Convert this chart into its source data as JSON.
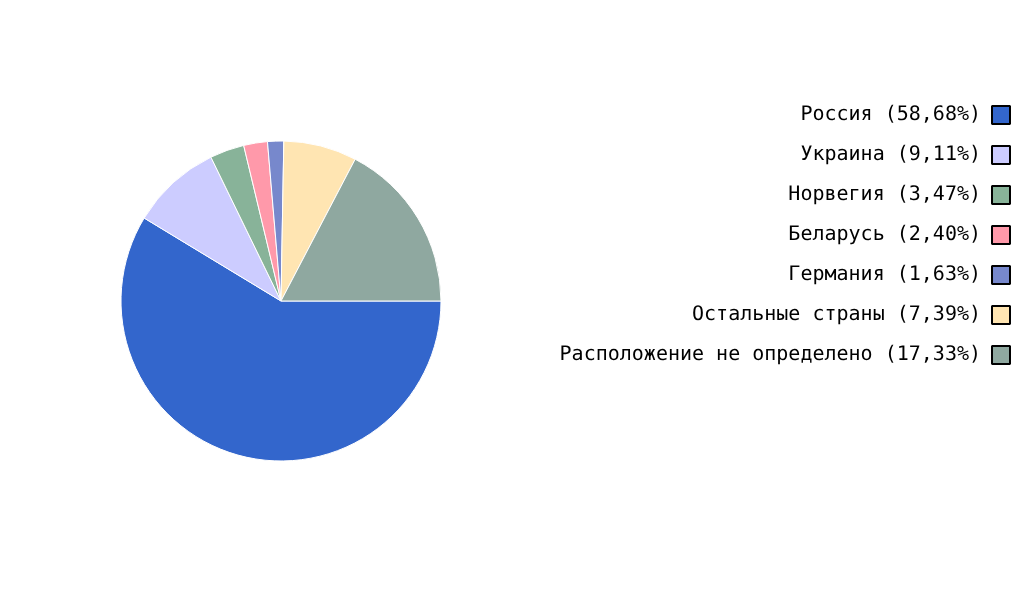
{
  "chart_data": {
    "type": "pie",
    "categories": [
      "Россия (58,68%)",
      "Украина (9,11%)",
      "Норвегия (3,47%)",
      "Беларусь (2,40%)",
      "Германия (1,63%)",
      "Остальные страны (7,39%)",
      "Расположение не определено (17,33%)"
    ],
    "values": [
      58.68,
      9.11,
      3.47,
      2.4,
      1.63,
      7.39,
      17.33
    ],
    "colors": [
      "#3366cc",
      "#ccccff",
      "#88b399",
      "#ff99aa",
      "#7788cc",
      "#ffe5b2",
      "#8fa8a0"
    ],
    "legend": "right"
  }
}
